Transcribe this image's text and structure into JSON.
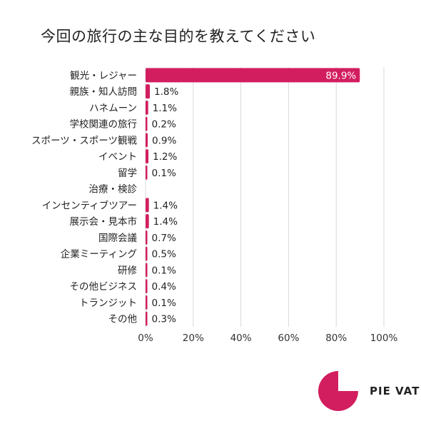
{
  "title": "今回の旅行の主な目的を教えてください",
  "brand": {
    "name": "PIE VAT",
    "accent": "#d21e5f"
  },
  "chart_data": {
    "type": "bar",
    "orientation": "horizontal",
    "title": "今回の旅行の主な目的を教えてください",
    "categories": [
      "観光・レジャー",
      "親族・知人訪問",
      "ハネムーン",
      "学校関連の旅行",
      "スポーツ・スポーツ観戦",
      "イベント",
      "留学",
      "治療・検診",
      "インセンティブツアー",
      "展示会・見本市",
      "国際会議",
      "企業ミーティング",
      "研修",
      "その他ビジネス",
      "トランジット",
      "その他"
    ],
    "values": [
      89.9,
      1.8,
      1.1,
      0.2,
      0.9,
      1.2,
      0.1,
      null,
      1.4,
      1.4,
      0.7,
      0.5,
      0.1,
      0.4,
      0.1,
      0.3
    ],
    "value_labels": [
      "89.9%",
      "1.8%",
      "1.1%",
      "0.2%",
      "0.9%",
      "1.2%",
      "0.1%",
      "",
      "1.4%",
      "1.4%",
      "0.7%",
      "0.5%",
      "0.1%",
      "0.4%",
      "0.1%",
      "0.3%"
    ],
    "x_ticks": [
      "0%",
      "20%",
      "40%",
      "60%",
      "80%",
      "100%"
    ],
    "xlim": [
      0,
      100
    ],
    "grid": true,
    "bar_color": "#d21e5f",
    "xlabel": "",
    "ylabel": ""
  }
}
